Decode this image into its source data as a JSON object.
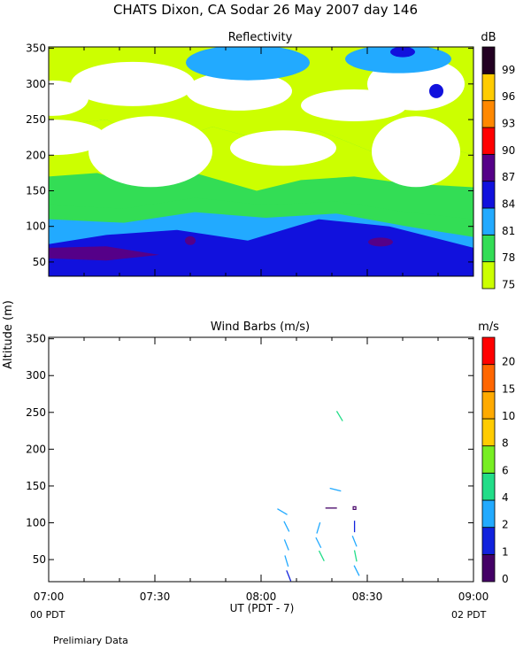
{
  "title": "CHATS Dixon, CA  Sodar  26 May 2007  day 146",
  "footer_note": "Prelimiary Data",
  "y_axis_label": "Altitude (m)",
  "x_axis_label": "UT  (PDT - 7)",
  "x_tick_labels": [
    "07:00",
    "07:30",
    "08:00",
    "08:30",
    "09:00"
  ],
  "pdt_labels": {
    "left": "00 PDT",
    "right": "02 PDT"
  },
  "chart_data": [
    {
      "type": "heatmap",
      "title": "Reflectivity",
      "colorbar_unit": "dB",
      "x_range_hours": [
        7.0,
        9.0
      ],
      "y_range_m": [
        30,
        352
      ],
      "y_ticks": [
        50,
        100,
        150,
        200,
        250,
        300,
        350
      ],
      "colorbar": [
        {
          "label": "75",
          "color": "#ccff00"
        },
        {
          "label": "78",
          "color": "#33dd55"
        },
        {
          "label": "81",
          "color": "#22aaff"
        },
        {
          "label": "84",
          "color": "#1111dd"
        },
        {
          "label": "87",
          "color": "#550088"
        },
        {
          "label": "90",
          "color": "#ff0000"
        },
        {
          "label": "93",
          "color": "#ff8800"
        },
        {
          "label": "96",
          "color": "#ffcc00"
        },
        {
          "label": "99",
          "color": "#220022"
        }
      ]
    },
    {
      "type": "scatter",
      "title": "Wind Barbs (m/s)",
      "colorbar_unit": "m/s",
      "x_range_hours": [
        7.0,
        9.0
      ],
      "y_range_m": [
        20,
        352
      ],
      "y_ticks": [
        50,
        100,
        150,
        200,
        250,
        300,
        350
      ],
      "colorbar": [
        {
          "label": "0",
          "color": "#440066"
        },
        {
          "label": "1",
          "color": "#1122dd"
        },
        {
          "label": "2",
          "color": "#22aaff"
        },
        {
          "label": "4",
          "color": "#22dd88"
        },
        {
          "label": "6",
          "color": "#77ee22"
        },
        {
          "label": "8",
          "color": "#ffcc00"
        },
        {
          "label": "10",
          "color": "#ffaa00"
        },
        {
          "label": "15",
          "color": "#ff6600"
        },
        {
          "label": "20",
          "color": "#ff0000"
        }
      ],
      "barbs": [
        {
          "t": 8.1,
          "alt": 115,
          "dx": 1.0,
          "dy": 0.6,
          "color": "#22aaff"
        },
        {
          "t": 8.12,
          "alt": 95,
          "dx": 0.5,
          "dy": 1.0,
          "color": "#22aaff"
        },
        {
          "t": 8.12,
          "alt": 70,
          "dx": 0.4,
          "dy": 1.0,
          "color": "#22aaff"
        },
        {
          "t": 8.12,
          "alt": 48,
          "dx": 0.3,
          "dy": 1.0,
          "color": "#22aaff"
        },
        {
          "t": 8.13,
          "alt": 28,
          "dx": 0.4,
          "dy": 1.0,
          "color": "#1122dd"
        },
        {
          "t": 8.27,
          "alt": 93,
          "dx": -0.3,
          "dy": 1.0,
          "color": "#22aaff"
        },
        {
          "t": 8.27,
          "alt": 73,
          "dx": 0.5,
          "dy": 1.0,
          "color": "#22aaff"
        },
        {
          "t": 8.285,
          "alt": 55,
          "dx": 0.5,
          "dy": 1.0,
          "color": "#22dd88"
        },
        {
          "t": 8.33,
          "alt": 120,
          "dx": 1.0,
          "dy": 0.0,
          "color": "#440066"
        },
        {
          "t": 8.35,
          "alt": 145,
          "dx": 1.0,
          "dy": 0.25,
          "color": "#22aaff"
        },
        {
          "t": 8.44,
          "alt": 120,
          "dx": 0.0,
          "dy": 0.0,
          "color": "#440066"
        },
        {
          "t": 8.44,
          "alt": 95,
          "dx": 0.0,
          "dy": 1.0,
          "color": "#1122dd"
        },
        {
          "t": 8.44,
          "alt": 75,
          "dx": 0.4,
          "dy": 1.0,
          "color": "#22aaff"
        },
        {
          "t": 8.445,
          "alt": 55,
          "dx": 0.2,
          "dy": 1.0,
          "color": "#22dd88"
        },
        {
          "t": 8.45,
          "alt": 35,
          "dx": 0.5,
          "dy": 1.0,
          "color": "#22aaff"
        },
        {
          "t": 8.37,
          "alt": 245,
          "dx": 0.6,
          "dy": 1.0,
          "color": "#22dd88"
        }
      ]
    }
  ]
}
